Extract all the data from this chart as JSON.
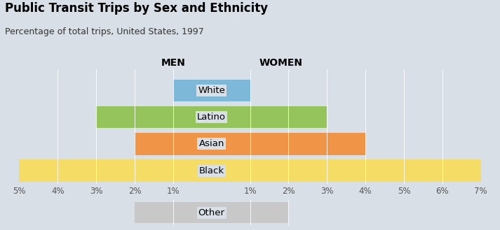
{
  "title": "Public Transit Trips by Sex and Ethnicity",
  "subtitle": "Percentage of total trips, United States, 1997",
  "categories": [
    "White",
    "Latino",
    "Asian",
    "Black"
  ],
  "other_category": "Other",
  "men_values": [
    1.0,
    3.0,
    2.0,
    5.0
  ],
  "women_values": [
    1.0,
    3.0,
    4.0,
    7.0
  ],
  "other_men": 2.0,
  "other_women": 2.0,
  "colors": {
    "White": "#7DB8D8",
    "Latino": "#96C45C",
    "Asian": "#F09448",
    "Black": "#F5DC64",
    "Other": "#C8C8C8"
  },
  "men_label": "MEN",
  "women_label": "WOMEN",
  "xlim_left": -5.5,
  "xlim_right": 7.5,
  "x_ticks_left": [
    -5,
    -4,
    -3,
    -2,
    -1
  ],
  "x_ticks_right": [
    1,
    2,
    3,
    4,
    5,
    6,
    7
  ],
  "x_tick_labels_left": [
    "5%",
    "4%",
    "3%",
    "2%",
    "1%"
  ],
  "x_tick_labels_right": [
    "1%",
    "2%",
    "3%",
    "4%",
    "5%",
    "6%",
    "7%"
  ],
  "background_color": "#D8DFE6",
  "bar_height": 0.82,
  "title_fontsize": 12,
  "subtitle_fontsize": 9,
  "label_fontsize": 9.5,
  "tick_fontsize": 8.5,
  "header_fontsize": 10
}
